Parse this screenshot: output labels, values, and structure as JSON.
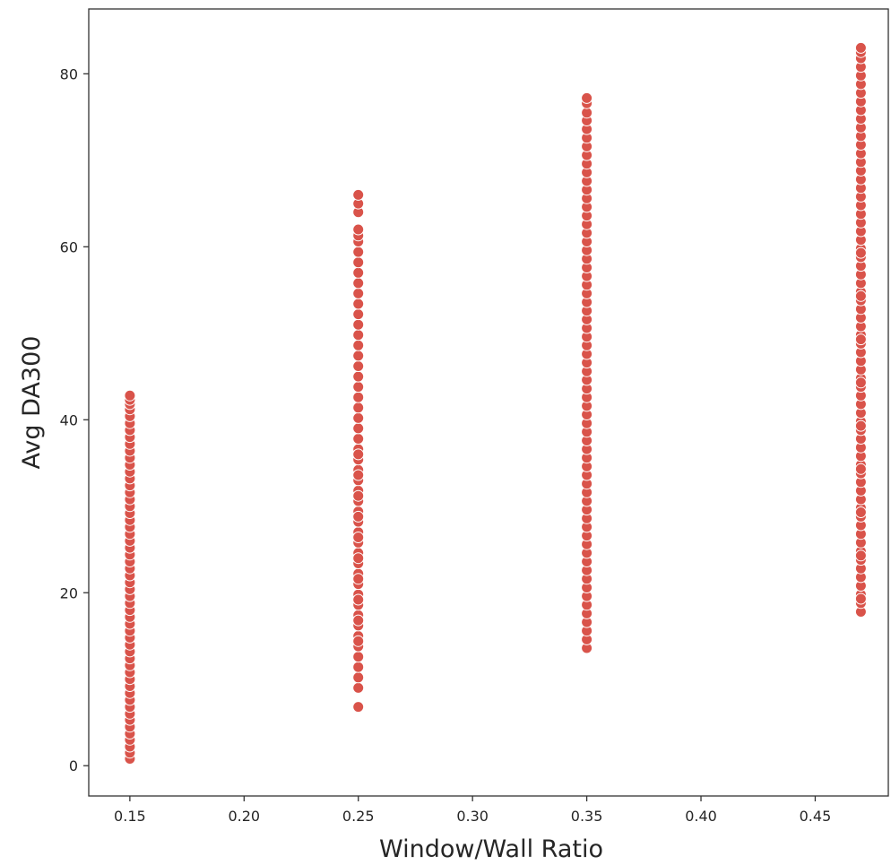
{
  "chart_data": {
    "type": "scatter",
    "title": "",
    "xlabel": "Window/Wall Ratio",
    "ylabel": "Avg DA300",
    "xlim": [
      0.132,
      0.482
    ],
    "ylim": [
      -3.5,
      87.5
    ],
    "xticks": [
      0.15,
      0.2,
      0.25,
      0.3,
      0.35,
      0.4,
      0.45
    ],
    "xtick_labels": [
      "0.15",
      "0.20",
      "0.25",
      "0.30",
      "0.35",
      "0.40",
      "0.45"
    ],
    "yticks": [
      0,
      20,
      40,
      60,
      80
    ],
    "ytick_labels": [
      "0",
      "20",
      "40",
      "60",
      "80"
    ],
    "grid": false,
    "legend": "none",
    "marker_color": "#d9534a",
    "series": [
      {
        "x": [
          0.15,
          0.15,
          0.15,
          0.15,
          0.15,
          0.15,
          0.15,
          0.15,
          0.15,
          0.15,
          0.15,
          0.15,
          0.15,
          0.15,
          0.15,
          0.15,
          0.15,
          0.15,
          0.15,
          0.15,
          0.15,
          0.15,
          0.15,
          0.15,
          0.15,
          0.15,
          0.15,
          0.15,
          0.15,
          0.15,
          0.15,
          0.15,
          0.15,
          0.15,
          0.15,
          0.15,
          0.15,
          0.15,
          0.15,
          0.15,
          0.15,
          0.15,
          0.15,
          0.15,
          0.15,
          0.15,
          0.15,
          0.15,
          0.15,
          0.15,
          0.15,
          0.15,
          0.15,
          0.15,
          0.15,
          0.25,
          0.25,
          0.25,
          0.25,
          0.25,
          0.25,
          0.25,
          0.25,
          0.25,
          0.25,
          0.25,
          0.25,
          0.25,
          0.25,
          0.25,
          0.25,
          0.25,
          0.25,
          0.25,
          0.25,
          0.25,
          0.25,
          0.25,
          0.25,
          0.25,
          0.25,
          0.25,
          0.25,
          0.25,
          0.25,
          0.25,
          0.25,
          0.25,
          0.25,
          0.25,
          0.25,
          0.25,
          0.25,
          0.25,
          0.25,
          0.25,
          0.25,
          0.25,
          0.25,
          0.25,
          0.25,
          0.25,
          0.25,
          0.25,
          0.25,
          0.25,
          0.25,
          0.25,
          0.25,
          0.25,
          0.25,
          0.25,
          0.25,
          0.25,
          0.25,
          0.35,
          0.35,
          0.35,
          0.35,
          0.35,
          0.35,
          0.35,
          0.35,
          0.35,
          0.35,
          0.35,
          0.35,
          0.35,
          0.35,
          0.35,
          0.35,
          0.35,
          0.35,
          0.35,
          0.35,
          0.35,
          0.35,
          0.35,
          0.35,
          0.35,
          0.35,
          0.35,
          0.35,
          0.35,
          0.35,
          0.35,
          0.35,
          0.35,
          0.35,
          0.35,
          0.35,
          0.35,
          0.35,
          0.35,
          0.35,
          0.35,
          0.35,
          0.35,
          0.35,
          0.35,
          0.35,
          0.35,
          0.35,
          0.35,
          0.35,
          0.35,
          0.35,
          0.35,
          0.35,
          0.35,
          0.35,
          0.35,
          0.35,
          0.35,
          0.35,
          0.35,
          0.35,
          0.35,
          0.35,
          0.35,
          0.47,
          0.47,
          0.47,
          0.47,
          0.47,
          0.47,
          0.47,
          0.47,
          0.47,
          0.47,
          0.47,
          0.47,
          0.47,
          0.47,
          0.47,
          0.47,
          0.47,
          0.47,
          0.47,
          0.47,
          0.47,
          0.47,
          0.47,
          0.47,
          0.47,
          0.47,
          0.47,
          0.47,
          0.47,
          0.47,
          0.47,
          0.47,
          0.47,
          0.47,
          0.47,
          0.47,
          0.47,
          0.47,
          0.47,
          0.47,
          0.47,
          0.47,
          0.47,
          0.47,
          0.47,
          0.47,
          0.47,
          0.47,
          0.47,
          0.47,
          0.47,
          0.47,
          0.47,
          0.47,
          0.47,
          0.47,
          0.47,
          0.47,
          0.47,
          0.47,
          0.47,
          0.47,
          0.47,
          0.47,
          0.47,
          0.47,
          0.47,
          0.47,
          0.47,
          0.47,
          0.47,
          0.47,
          0.47,
          0.47,
          0.47,
          0.47
        ],
        "y": [
          0.8,
          1.5,
          2.2,
          3.0,
          3.7,
          4.5,
          5.3,
          6.0,
          6.8,
          7.6,
          8.4,
          9.2,
          10.0,
          10.8,
          11.6,
          12.4,
          13.2,
          14.0,
          14.8,
          15.6,
          16.4,
          17.2,
          18.0,
          18.8,
          19.6,
          20.4,
          21.2,
          22.0,
          22.8,
          23.6,
          24.4,
          25.2,
          26.0,
          26.8,
          27.6,
          28.4,
          29.2,
          30.0,
          30.8,
          31.6,
          32.4,
          33.2,
          34.0,
          34.8,
          35.6,
          36.4,
          37.2,
          38.0,
          38.8,
          39.6,
          40.4,
          41.2,
          41.8,
          42.3,
          42.8,
          6.8,
          9.0,
          10.2,
          11.4,
          12.6,
          13.8,
          15.0,
          16.2,
          17.4,
          18.6,
          19.8,
          21.0,
          22.2,
          23.4,
          24.6,
          25.8,
          27.0,
          28.2,
          29.4,
          30.6,
          31.8,
          33.0,
          34.2,
          35.4,
          36.6,
          37.8,
          39.0,
          40.2,
          41.4,
          42.6,
          43.8,
          45.0,
          46.2,
          47.4,
          48.6,
          49.8,
          51.0,
          52.2,
          53.4,
          54.6,
          55.8,
          57.0,
          58.2,
          59.4,
          60.6,
          61.3,
          62.0,
          64.0,
          65.0,
          66.0,
          14.4,
          16.8,
          19.2,
          21.6,
          24.0,
          26.4,
          28.8,
          31.2,
          33.6,
          36.0,
          13.6,
          14.6,
          15.6,
          16.6,
          17.6,
          18.6,
          19.6,
          20.6,
          21.6,
          22.6,
          23.6,
          24.6,
          25.6,
          26.6,
          27.6,
          28.6,
          29.6,
          30.6,
          31.6,
          32.6,
          33.6,
          34.6,
          35.6,
          36.6,
          37.6,
          38.6,
          39.6,
          40.6,
          41.6,
          42.6,
          43.6,
          44.6,
          45.6,
          46.6,
          47.6,
          48.6,
          49.6,
          50.6,
          51.6,
          52.6,
          53.6,
          54.6,
          55.6,
          56.6,
          57.6,
          58.6,
          59.6,
          60.6,
          61.6,
          62.6,
          63.6,
          64.6,
          65.6,
          66.6,
          67.6,
          68.6,
          69.6,
          70.6,
          71.6,
          72.6,
          73.6,
          74.6,
          75.5,
          76.6,
          77.2,
          17.8,
          18.8,
          19.8,
          20.8,
          21.8,
          22.8,
          23.8,
          24.8,
          25.8,
          26.8,
          27.8,
          28.8,
          29.8,
          30.8,
          31.8,
          32.8,
          33.8,
          34.8,
          35.8,
          36.8,
          37.8,
          38.8,
          39.8,
          40.8,
          41.8,
          42.8,
          43.8,
          44.8,
          45.8,
          46.8,
          47.8,
          48.8,
          49.8,
          50.8,
          51.8,
          52.8,
          53.8,
          54.8,
          55.8,
          56.8,
          57.8,
          58.8,
          59.8,
          60.8,
          61.8,
          62.8,
          63.8,
          64.8,
          65.8,
          66.8,
          67.8,
          68.8,
          69.8,
          70.8,
          71.8,
          72.8,
          73.8,
          74.8,
          75.8,
          76.8,
          77.8,
          78.8,
          79.8,
          80.8,
          81.8,
          82.5,
          83.0,
          19.3,
          24.3,
          29.3,
          34.3,
          39.3,
          44.3,
          49.3,
          54.3,
          59.3
        ]
      }
    ]
  }
}
